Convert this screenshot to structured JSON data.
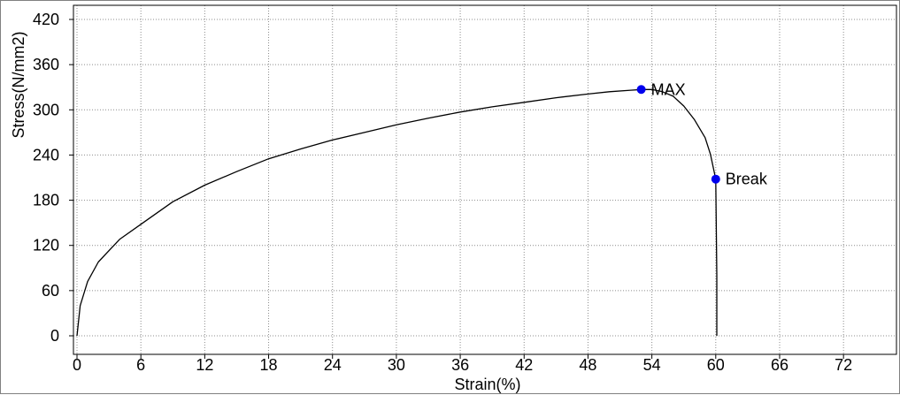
{
  "chart_data": {
    "type": "line",
    "title": "",
    "xlabel": "Strain(%)",
    "ylabel": "Stress(N/mm2)",
    "xlim": [
      0,
      79.5
    ],
    "ylim": [
      0,
      420
    ],
    "x_ticks": [
      0,
      6,
      12,
      18,
      24,
      30,
      36,
      42,
      48,
      54,
      60,
      66,
      72
    ],
    "y_ticks": [
      0,
      60,
      120,
      180,
      240,
      300,
      360,
      420
    ],
    "grid": true,
    "series": [
      {
        "color": "#000000",
        "x": [
          0,
          0.3,
          1,
          2,
          4,
          6,
          9,
          12,
          15,
          18,
          21,
          24,
          27,
          30,
          33,
          36,
          39,
          42,
          45,
          48,
          50,
          52,
          53,
          54,
          55,
          56,
          57,
          58,
          59,
          59.5,
          60,
          60.1,
          60.1
        ],
        "y": [
          0,
          40,
          72,
          98,
          128,
          148,
          178,
          200,
          218,
          235,
          248,
          260,
          270,
          280,
          289,
          297,
          304,
          310,
          316,
          321,
          324,
          326,
          327,
          327,
          324,
          318,
          305,
          287,
          263,
          241,
          208,
          80,
          0
        ]
      }
    ],
    "annotations": [
      {
        "label": "MAX",
        "x": 53,
        "y": 327,
        "color": "#0000ee"
      },
      {
        "label": "Break",
        "x": 60,
        "y": 208,
        "color": "#0000ee"
      }
    ]
  }
}
